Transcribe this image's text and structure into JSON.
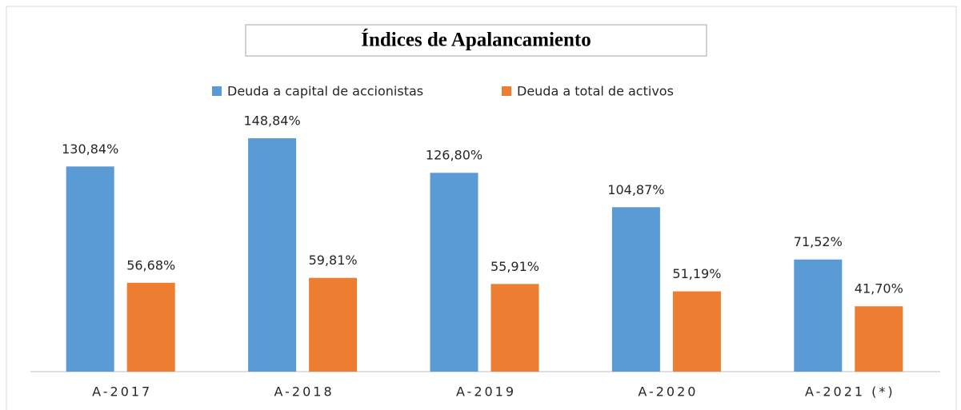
{
  "chart_data": {
    "type": "bar",
    "title": "Índices de Apalancamiento",
    "categories": [
      "A-2017",
      "A-2018",
      "A-2019",
      "A-2020",
      "A-2021 (*)"
    ],
    "series": [
      {
        "name": "Deuda a capital de accionistas",
        "color": "#5b9bd5",
        "values": [
          130.84,
          148.84,
          126.8,
          104.87,
          71.52
        ],
        "value_labels": [
          "130,84%",
          "148,84%",
          "126,80%",
          "104,87%",
          "71,52%"
        ]
      },
      {
        "name": "Deuda a total de activos",
        "color": "#ed7d31",
        "values": [
          56.68,
          59.81,
          55.91,
          51.19,
          41.7
        ],
        "value_labels": [
          "56,68%",
          "59,81%",
          "55,91%",
          "51,19%",
          "41,70%"
        ]
      }
    ]
  }
}
